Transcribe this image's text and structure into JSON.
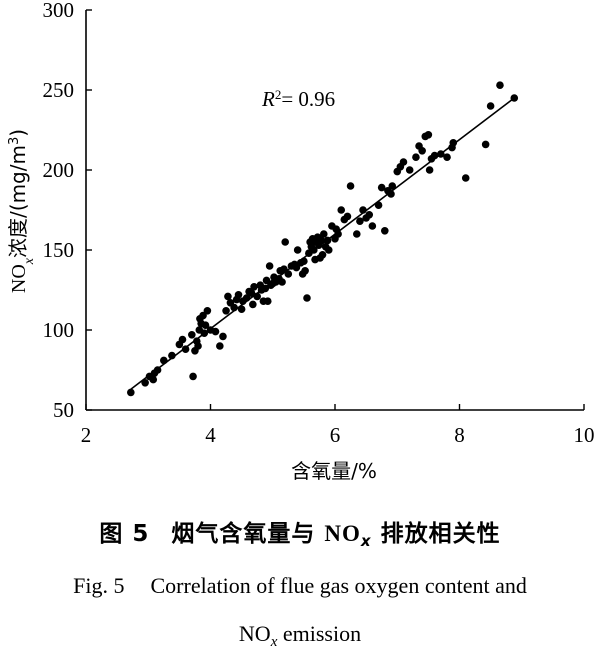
{
  "chart_data": {
    "type": "scatter",
    "xlabel": "含氧量/%",
    "ylabel_main": "NO",
    "ylabel_sub": "x",
    "ylabel_rest": "浓度/(mg/m",
    "ylabel_sup": "3",
    "ylabel_end": ")",
    "xlim": [
      2,
      10
    ],
    "ylim": [
      50,
      300
    ],
    "x_ticks": [
      2,
      4,
      6,
      8,
      10
    ],
    "y_ticks": [
      50,
      100,
      150,
      200,
      250,
      300
    ],
    "grid": false,
    "annotation": {
      "r": "R",
      "sup": "2",
      "rest": "= 0.96"
    },
    "fit_line": {
      "x": [
        2.72,
        8.88
      ],
      "y": [
        63,
        245
      ]
    },
    "points": [
      [
        2.72,
        61
      ],
      [
        2.95,
        67
      ],
      [
        3.02,
        71
      ],
      [
        3.08,
        69
      ],
      [
        3.1,
        73
      ],
      [
        3.15,
        75
      ],
      [
        3.25,
        81
      ],
      [
        3.38,
        84
      ],
      [
        3.5,
        91
      ],
      [
        3.6,
        88
      ],
      [
        3.55,
        94
      ],
      [
        3.7,
        97
      ],
      [
        3.72,
        71
      ],
      [
        3.75,
        87
      ],
      [
        3.78,
        93
      ],
      [
        3.8,
        90
      ],
      [
        3.82,
        100
      ],
      [
        3.83,
        107
      ],
      [
        3.85,
        104
      ],
      [
        3.88,
        109
      ],
      [
        3.9,
        98
      ],
      [
        3.92,
        103
      ],
      [
        3.95,
        112
      ],
      [
        4.0,
        100
      ],
      [
        4.08,
        99
      ],
      [
        4.15,
        90
      ],
      [
        4.2,
        96
      ],
      [
        4.25,
        112
      ],
      [
        4.28,
        121
      ],
      [
        4.32,
        117
      ],
      [
        4.38,
        114
      ],
      [
        4.42,
        119
      ],
      [
        4.45,
        122
      ],
      [
        4.5,
        113
      ],
      [
        4.52,
        118
      ],
      [
        4.58,
        120
      ],
      [
        4.62,
        124
      ],
      [
        4.66,
        123
      ],
      [
        4.68,
        116
      ],
      [
        4.7,
        127
      ],
      [
        4.75,
        121
      ],
      [
        4.8,
        128
      ],
      [
        4.82,
        125
      ],
      [
        4.85,
        118
      ],
      [
        4.88,
        126
      ],
      [
        4.9,
        131
      ],
      [
        4.92,
        118
      ],
      [
        4.95,
        140
      ],
      [
        4.97,
        128
      ],
      [
        5.0,
        129
      ],
      [
        5.02,
        133
      ],
      [
        5.05,
        130
      ],
      [
        5.1,
        132
      ],
      [
        5.12,
        137
      ],
      [
        5.15,
        130
      ],
      [
        5.18,
        138
      ],
      [
        5.2,
        155
      ],
      [
        5.25,
        135
      ],
      [
        5.3,
        140
      ],
      [
        5.35,
        141
      ],
      [
        5.38,
        139
      ],
      [
        5.4,
        150
      ],
      [
        5.45,
        142
      ],
      [
        5.48,
        135
      ],
      [
        5.5,
        143
      ],
      [
        5.52,
        137
      ],
      [
        5.55,
        120
      ],
      [
        5.58,
        148
      ],
      [
        5.6,
        155
      ],
      [
        5.62,
        152
      ],
      [
        5.64,
        157
      ],
      [
        5.66,
        150
      ],
      [
        5.68,
        144
      ],
      [
        5.7,
        155
      ],
      [
        5.72,
        158
      ],
      [
        5.74,
        153
      ],
      [
        5.76,
        145
      ],
      [
        5.78,
        156
      ],
      [
        5.8,
        147
      ],
      [
        5.82,
        160
      ],
      [
        5.85,
        152
      ],
      [
        5.88,
        156
      ],
      [
        5.9,
        150
      ],
      [
        5.95,
        165
      ],
      [
        6.0,
        157
      ],
      [
        6.02,
        163
      ],
      [
        6.05,
        160
      ],
      [
        6.1,
        175
      ],
      [
        6.15,
        169
      ],
      [
        6.2,
        171
      ],
      [
        6.25,
        190
      ],
      [
        6.35,
        160
      ],
      [
        6.4,
        168
      ],
      [
        6.45,
        175
      ],
      [
        6.5,
        170
      ],
      [
        6.55,
        172
      ],
      [
        6.6,
        165
      ],
      [
        6.7,
        178
      ],
      [
        6.75,
        189
      ],
      [
        6.8,
        162
      ],
      [
        6.85,
        187
      ],
      [
        6.9,
        185
      ],
      [
        6.92,
        190
      ],
      [
        7.0,
        199
      ],
      [
        7.05,
        202
      ],
      [
        7.1,
        205
      ],
      [
        7.2,
        200
      ],
      [
        7.3,
        208
      ],
      [
        7.35,
        215
      ],
      [
        7.4,
        212
      ],
      [
        7.45,
        221
      ],
      [
        7.5,
        222
      ],
      [
        7.52,
        200
      ],
      [
        7.55,
        207
      ],
      [
        7.6,
        209
      ],
      [
        7.7,
        210
      ],
      [
        7.8,
        208
      ],
      [
        7.88,
        214
      ],
      [
        7.9,
        217
      ],
      [
        8.1,
        195
      ],
      [
        8.42,
        216
      ],
      [
        8.5,
        240
      ],
      [
        8.65,
        253
      ],
      [
        8.88,
        245
      ]
    ]
  },
  "caption": {
    "cn_fig": "图 5",
    "cn_text_before": "烟气含氧量与 ",
    "cn_nox": "NO",
    "cn_nox_sub": "x",
    "cn_text_after": " 排放相关性",
    "en_fig": "Fig. 5",
    "en_line1": "Correlation of flue gas oxygen content and",
    "en_line2_main": "NO",
    "en_line2_sub": "x",
    "en_line2_rest": " emission"
  }
}
